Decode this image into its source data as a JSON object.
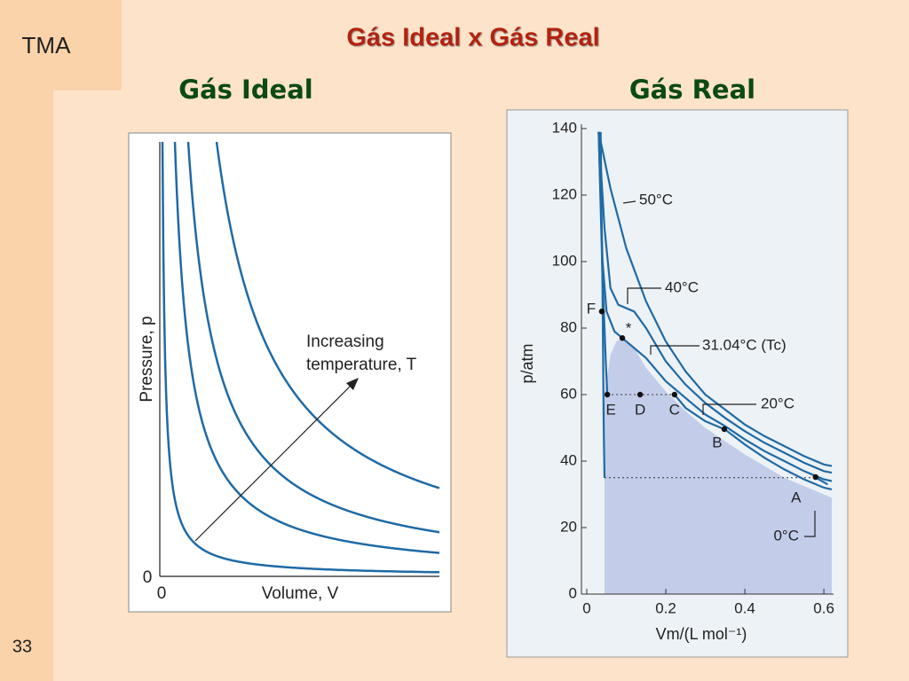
{
  "slide": {
    "tag": "TMA",
    "title": "Gás Ideal x Gás Real",
    "left_heading": "Gás Ideal",
    "right_heading": "Gás Real",
    "page_number": "33"
  },
  "chart_data": [
    {
      "type": "schematic",
      "x_label": "Volume, V",
      "y_label": "Pressure, p",
      "x_origin_label": "0",
      "y_origin_label": "0",
      "annotation": [
        "Increasing",
        "temperature, T"
      ],
      "color": "#1f6aa5"
    },
    {
      "type": "line",
      "x_label": "Vm/(L mol⁻¹)",
      "y_label": "p/atm",
      "xlim": [
        0,
        0.62
      ],
      "ylim": [
        0,
        140
      ],
      "xticks": [
        0,
        0.2,
        0.4,
        0.6
      ],
      "yticks": [
        0,
        20,
        40,
        60,
        80,
        100,
        120,
        140
      ],
      "series": [
        {
          "name": "50°C",
          "color": "#1f6aa5",
          "x": [
            0.03,
            0.06,
            0.1,
            0.15,
            0.2,
            0.25,
            0.3,
            0.35,
            0.4,
            0.45,
            0.5,
            0.55,
            0.6,
            0.62
          ],
          "values": [
            139,
            122,
            104,
            88,
            76,
            67,
            60,
            55.5,
            51,
            47.5,
            44.5,
            41.5,
            39,
            38.5
          ]
        },
        {
          "name": "40°C",
          "color": "#1f6aa5",
          "x": [
            0.03,
            0.045,
            0.06,
            0.08,
            0.12,
            0.15,
            0.2,
            0.25,
            0.3,
            0.35,
            0.4,
            0.45,
            0.5,
            0.55,
            0.6,
            0.62
          ],
          "values": [
            139,
            110,
            92,
            87,
            85,
            80,
            70,
            63,
            57.5,
            53,
            49,
            45.5,
            42.5,
            39.5,
            37,
            36.5
          ]
        },
        {
          "name": "31.04°C (Tc)",
          "color": "#1f6aa5",
          "x": [
            0.03,
            0.04,
            0.05,
            0.07,
            0.09,
            0.15,
            0.2,
            0.25,
            0.3,
            0.35,
            0.4,
            0.45,
            0.5,
            0.55,
            0.6,
            0.62
          ],
          "values": [
            139,
            100,
            85,
            79,
            77,
            71,
            64,
            59,
            54,
            50.5,
            46.5,
            43,
            40,
            37,
            34.5,
            34
          ]
        },
        {
          "name": "20°C",
          "color": "#1f6aa5",
          "x": [
            0.03,
            0.04,
            0.048,
            0.052,
            0.14,
            0.222,
            0.25,
            0.3,
            0.35,
            0.4,
            0.45,
            0.5,
            0.55,
            0.6,
            0.62
          ],
          "values": [
            139,
            95,
            70,
            60,
            null,
            60,
            56,
            52,
            49.5,
            45,
            41,
            37.5,
            34.5,
            32,
            31.5
          ]
        },
        {
          "name": "0°C",
          "color": "#1f6aa5",
          "x": [
            0.035,
            0.04,
            0.043,
            0.045,
            0.3,
            0.58,
            0.61
          ],
          "values": [
            139,
            90,
            50,
            35,
            null,
            35,
            33
          ]
        }
      ],
      "shaded_region": {
        "color": "#c3cdea",
        "x": [
          0.045,
          0.045,
          0.06,
          0.075,
          0.09,
          0.12,
          0.15,
          0.2,
          0.25,
          0.3,
          0.4,
          0.5,
          0.6,
          0.62,
          0.62
        ],
        "values": [
          0,
          60,
          72,
          76,
          77,
          74,
          68,
          61,
          55,
          50,
          42,
          35,
          30,
          29,
          0
        ]
      },
      "tie_lines": [
        {
          "x": [
            0.052,
            0.222
          ],
          "values": [
            60,
            60
          ]
        },
        {
          "x": [
            0.045,
            0.58
          ],
          "values": [
            35,
            35
          ]
        }
      ],
      "points": [
        {
          "label": "F",
          "x": 0.038,
          "y": 85
        },
        {
          "label": "*",
          "x": 0.09,
          "y": 77
        },
        {
          "label": "E",
          "x": 0.052,
          "y": 60
        },
        {
          "label": "D",
          "x": 0.135,
          "y": 60
        },
        {
          "label": "C",
          "x": 0.222,
          "y": 60
        },
        {
          "label": "B",
          "x": 0.348,
          "y": 49.6
        },
        {
          "label": "A",
          "x": 0.579,
          "y": 35.2
        }
      ]
    }
  ]
}
